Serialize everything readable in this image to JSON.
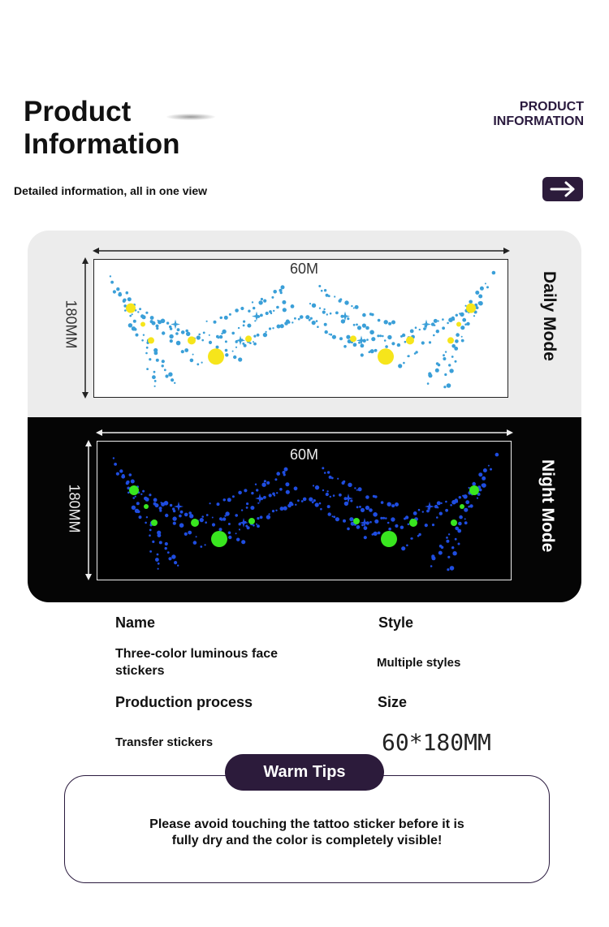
{
  "header": {
    "title_line1": "Product",
    "title_line2": "Information",
    "corner_line1": "PRODUCT",
    "corner_line2": "INFORMATION",
    "subtitle": "Detailed information, all in one view",
    "arrow_icon": "arrow-right-icon"
  },
  "daily": {
    "width_label": "60M",
    "height_label": "180MM",
    "mode_label": "Daily Mode",
    "colors": {
      "dots": "#3a9fd8",
      "accent": "#f6e51b",
      "bg": "#ececec"
    }
  },
  "night": {
    "width_label": "60M",
    "height_label": "180MM",
    "mode_label": "Night Mode",
    "colors": {
      "dots": "#1f4de0",
      "accent": "#39e61f",
      "bg": "#050505"
    }
  },
  "specs": {
    "name_header": "Name",
    "name_value": "Three-color luminous face stickers",
    "style_header": "Style",
    "style_value": "Multiple styles",
    "process_header": "Production process",
    "process_value": "Transfer stickers",
    "size_header": "Size",
    "size_value": "60*180MM"
  },
  "tips": {
    "label": "Warm Tips",
    "text_line1": "Please avoid touching the tattoo sticker before it is",
    "text_line2": "fully dry and the color is completely visible!"
  },
  "colors": {
    "brand": "#2c1b3b"
  }
}
